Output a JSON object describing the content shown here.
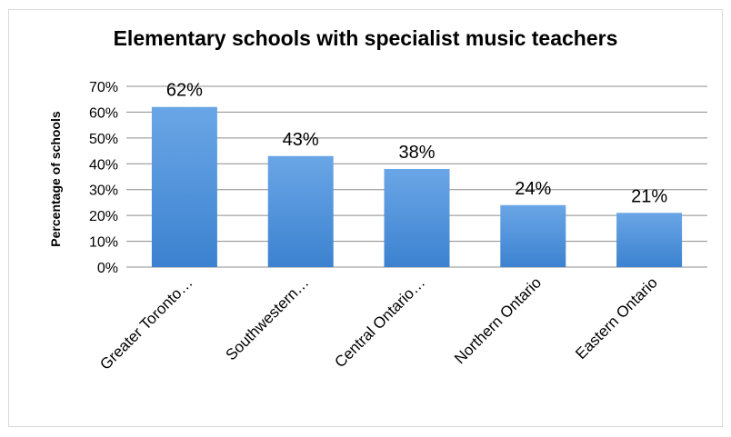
{
  "chart_data": {
    "type": "bar",
    "title": "Elementary schools with specialist music teachers",
    "xlabel": "",
    "ylabel": "Percentage of schools",
    "categories": [
      "Greater Toronto…",
      "Southwestern…",
      "Central Ontario…",
      "Northern Ontario",
      "Eastern Ontario"
    ],
    "values": [
      62,
      43,
      38,
      24,
      21
    ],
    "data_labels": [
      "62%",
      "43%",
      "38%",
      "24%",
      "21%"
    ],
    "ylim": [
      0,
      70
    ],
    "yticks": [
      "0%",
      "10%",
      "20%",
      "30%",
      "40%",
      "50%",
      "60%",
      "70%"
    ],
    "grid": true,
    "legend": "none",
    "bar_color": "#4a90d9"
  }
}
